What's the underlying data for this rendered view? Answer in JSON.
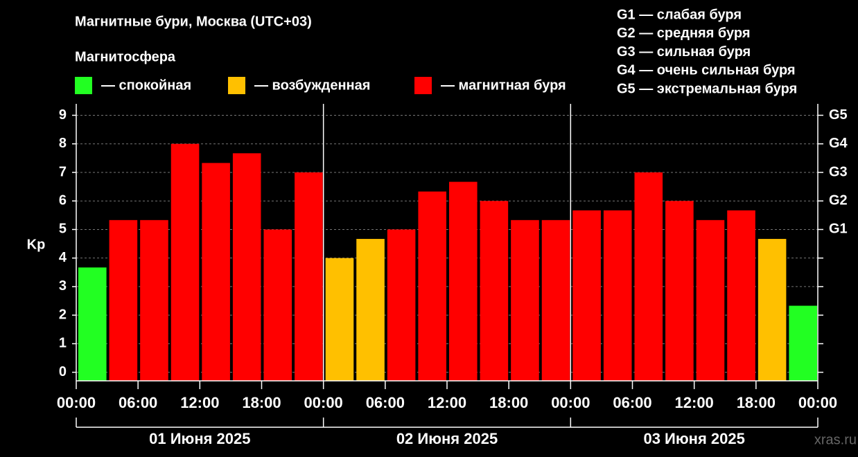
{
  "chart_data": {
    "type": "bar",
    "title": "Магнитные бури, Москва (UTC+03)",
    "subtitle": "Магнитосфера",
    "y_label": "Kp",
    "watermark": "xras.ru",
    "legend": [
      {
        "label": "— спокойная",
        "color": "#22ff22"
      },
      {
        "label": "— возбужденная",
        "color": "#ffc000"
      },
      {
        "label": "— магнитная буря",
        "color": "#ff0000"
      }
    ],
    "storm_levels": [
      "G1 — слабая буря",
      "G2 — средняя буря",
      "G3 — сильная буря",
      "G4 — очень сильная буря",
      "G5 — экстремальная буря"
    ],
    "x": [
      0,
      3,
      6,
      9,
      12,
      15,
      18,
      21,
      24,
      27,
      30,
      33,
      36,
      39,
      42,
      45,
      48,
      51,
      54,
      57,
      60,
      63,
      66,
      69
    ],
    "bar_width": 3,
    "values": [
      3.67,
      5.33,
      5.33,
      8,
      7.33,
      7.67,
      5,
      7,
      4,
      4.67,
      5,
      6.33,
      6.67,
      6,
      5.33,
      5.33,
      5.67,
      5.67,
      7,
      6,
      5.33,
      5.67,
      4.67,
      2.33
    ],
    "colors": [
      "#22ff22",
      "#ff0000",
      "#ff0000",
      "#ff0000",
      "#ff0000",
      "#ff0000",
      "#ff0000",
      "#ff0000",
      "#ffc000",
      "#ffc000",
      "#ff0000",
      "#ff0000",
      "#ff0000",
      "#ff0000",
      "#ff0000",
      "#ff0000",
      "#ff0000",
      "#ff0000",
      "#ff0000",
      "#ff0000",
      "#ff0000",
      "#ff0000",
      "#ffc000",
      "#22ff22"
    ],
    "xlim": [
      0,
      72
    ],
    "xticks": [
      {
        "value": 0,
        "label": "00:00"
      },
      {
        "value": 6,
        "label": "06:00"
      },
      {
        "value": 12,
        "label": "12:00"
      },
      {
        "value": 18,
        "label": "18:00"
      },
      {
        "value": 24,
        "label": "00:00"
      },
      {
        "value": 30,
        "label": "06:00"
      },
      {
        "value": 36,
        "label": "12:00"
      },
      {
        "value": 42,
        "label": "18:00"
      },
      {
        "value": 48,
        "label": "00:00"
      },
      {
        "value": 54,
        "label": "06:00"
      },
      {
        "value": 60,
        "label": "12:00"
      },
      {
        "value": 66,
        "label": "18:00"
      },
      {
        "value": 72,
        "label": "00:00"
      }
    ],
    "days": [
      {
        "start": 0,
        "end": 24,
        "label": "01 Июня 2025"
      },
      {
        "start": 24,
        "end": 48,
        "label": "02 Июня 2025"
      },
      {
        "start": 48,
        "end": 72,
        "label": "03 Июня 2025"
      }
    ],
    "ylim": [
      -0.3,
      9.4
    ],
    "yticks": [
      0,
      1,
      2,
      3,
      4,
      5,
      6,
      7,
      8,
      9
    ],
    "y2lim": [
      -0.3,
      9.4
    ],
    "y2ticks": [
      {
        "value": 5,
        "label": "G1"
      },
      {
        "value": 6,
        "label": "G2"
      },
      {
        "value": 7,
        "label": "G3"
      },
      {
        "value": 8,
        "label": "G4"
      },
      {
        "value": 9,
        "label": "G5"
      }
    ],
    "grid": true
  }
}
